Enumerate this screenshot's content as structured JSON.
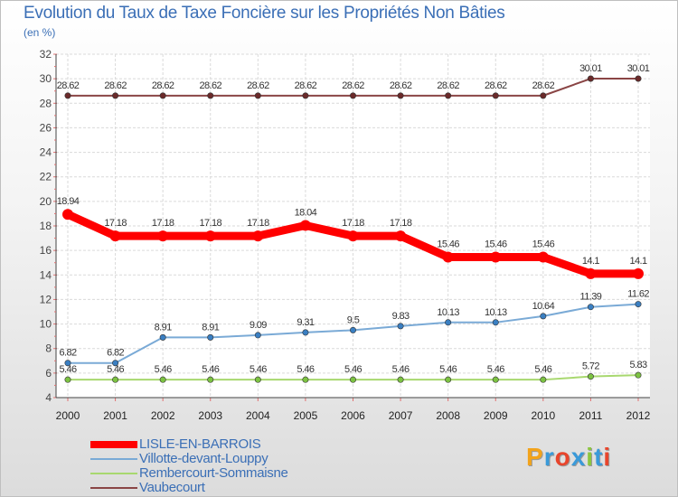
{
  "title": "Evolution du Taux de Taxe Foncière sur les Propriétés Non Bâties",
  "unit_label": "(en %)",
  "logo": {
    "text": "Proxiti",
    "letter_colors": [
      "#f2a31b",
      "#3a9ad9",
      "#e8452c",
      "#3a9ad9",
      "#8cc63f",
      "#3a9ad9",
      "#e8452c"
    ]
  },
  "chart_data": {
    "type": "line",
    "title": "Evolution du Taux de Taxe Foncière sur les Propriétés Non Bâties",
    "ylabel": "(en %)",
    "xlabel": "",
    "x": [
      "2000",
      "2001",
      "2002",
      "2003",
      "2004",
      "2005",
      "2006",
      "2007",
      "2008",
      "2009",
      "2010",
      "2011",
      "2012"
    ],
    "ylim": [
      4,
      32
    ],
    "yticks": [
      "4",
      "6",
      "8",
      "10",
      "12",
      "14",
      "16",
      "18",
      "20",
      "22",
      "24",
      "26",
      "28",
      "30",
      "32"
    ],
    "grid": true,
    "legend_position": "bottom-left",
    "series": [
      {
        "name": "LISLE-EN-BARROIS",
        "color": "#ff0000",
        "marker": "#ff0000",
        "width": "thick",
        "values": [
          18.94,
          17.18,
          17.18,
          17.18,
          17.18,
          18.04,
          17.18,
          17.18,
          15.46,
          15.46,
          15.46,
          14.1,
          14.1
        ],
        "labels": [
          "18.94",
          "17.18",
          "17.18",
          "17.18",
          "17.18",
          "18.04",
          "17.18",
          "17.18",
          "15.46",
          "15.46",
          "15.46",
          "14.1",
          "14.1"
        ]
      },
      {
        "name": "Villotte-devant-Louppy",
        "color": "#7aaad6",
        "marker": "#3a7fc2",
        "width": "thin",
        "values": [
          6.82,
          6.82,
          8.91,
          8.91,
          9.09,
          9.31,
          9.5,
          9.83,
          10.13,
          10.13,
          10.64,
          11.39,
          11.62
        ],
        "labels": [
          "6.82",
          "6.82",
          "8.91",
          "8.91",
          "9.09",
          "9.31",
          "9.5",
          "9.83",
          "10.13",
          "10.13",
          "10.64",
          "11.39",
          "11.62"
        ]
      },
      {
        "name": "Rembercourt-Sommaisne",
        "color": "#a8d86f",
        "marker": "#7cc242",
        "width": "thin",
        "values": [
          5.46,
          5.46,
          5.46,
          5.46,
          5.46,
          5.46,
          5.46,
          5.46,
          5.46,
          5.46,
          5.46,
          5.72,
          5.83
        ],
        "labels": [
          "5.46",
          "5.46",
          "5.46",
          "5.46",
          "5.46",
          "5.46",
          "5.46",
          "5.46",
          "5.46",
          "5.46",
          "5.46",
          "5.72",
          "5.83"
        ]
      },
      {
        "name": "Vaubecourt",
        "color": "#8a4545",
        "marker": "#6b2a2a",
        "width": "thin",
        "values": [
          28.62,
          28.62,
          28.62,
          28.62,
          28.62,
          28.62,
          28.62,
          28.62,
          28.62,
          28.62,
          28.62,
          30.01,
          30.01
        ],
        "labels": [
          "28.62",
          "28.62",
          "28.62",
          "28.62",
          "28.62",
          "28.62",
          "28.62",
          "28.62",
          "28.62",
          "28.62",
          "28.62",
          "30.01",
          "30.01"
        ]
      }
    ]
  }
}
